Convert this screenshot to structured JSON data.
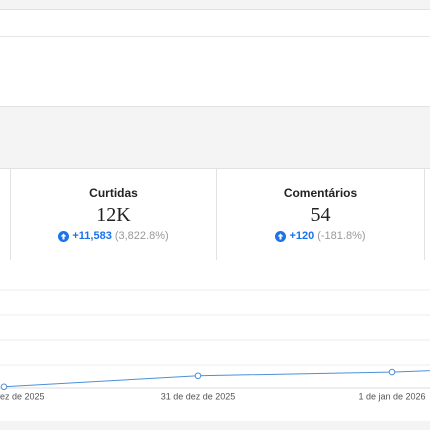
{
  "stats": [
    {
      "label": "Curtidas",
      "value": "12K",
      "change": "+11,583",
      "percent": "(3,822.8%)"
    },
    {
      "label": "Comentários",
      "value": "54",
      "change": "+120",
      "percent": "(-181.8%)"
    }
  ],
  "chart_data": {
    "type": "line",
    "categories": [
      "ez de 2025",
      "31 de dez de 2025",
      "1 de jan de 2026",
      null
    ],
    "values": [
      0.05,
      0.5,
      0.65,
      0.95
    ],
    "color": "#4a90d9",
    "ylim": [
      0,
      4
    ]
  }
}
